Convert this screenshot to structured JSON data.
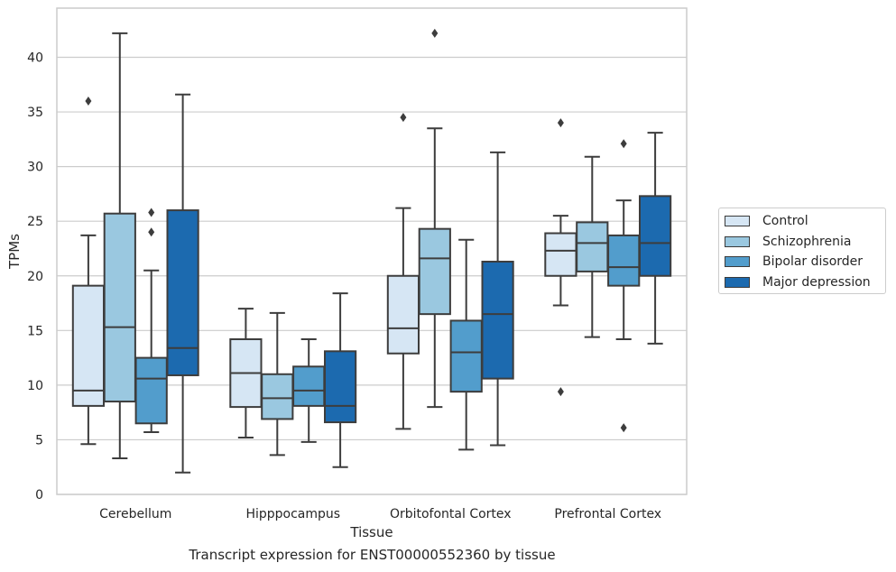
{
  "chart_data": {
    "type": "box",
    "xlabel": "Tissue",
    "ylabel": "TPMs",
    "ylim": [
      0,
      44.5
    ],
    "yticks": [
      0,
      5,
      10,
      15,
      20,
      25,
      30,
      35,
      40
    ],
    "grid": "horizontal",
    "legend_position": "right",
    "categories": [
      "Cerebellum",
      "Hipppocampus",
      "Orbitofontal Cortex",
      "Prefrontal Cortex"
    ],
    "series": [
      {
        "name": "Control",
        "color": "#d6e6f4",
        "boxes": [
          {
            "whislo": 4.6,
            "q1": 8.1,
            "med": 9.5,
            "q3": 19.1,
            "whishi": 23.7,
            "fliers": [
              36.0
            ]
          },
          {
            "whislo": 5.2,
            "q1": 8.0,
            "med": 11.1,
            "q3": 14.2,
            "whishi": 17.0,
            "fliers": []
          },
          {
            "whislo": 6.0,
            "q1": 12.9,
            "med": 15.2,
            "q3": 20.0,
            "whishi": 26.2,
            "fliers": [
              34.5
            ]
          },
          {
            "whislo": 17.3,
            "q1": 20.0,
            "med": 22.3,
            "q3": 23.9,
            "whishi": 25.5,
            "fliers": [
              34.0,
              9.4
            ]
          }
        ]
      },
      {
        "name": "Schizophrenia",
        "color": "#9ac8e0",
        "boxes": [
          {
            "whislo": 3.3,
            "q1": 8.5,
            "med": 15.3,
            "q3": 25.7,
            "whishi": 42.2,
            "fliers": []
          },
          {
            "whislo": 3.6,
            "q1": 6.9,
            "med": 8.8,
            "q3": 11.0,
            "whishi": 16.6,
            "fliers": []
          },
          {
            "whislo": 8.0,
            "q1": 16.5,
            "med": 21.6,
            "q3": 24.3,
            "whishi": 33.5,
            "fliers": [
              42.2
            ]
          },
          {
            "whislo": 14.4,
            "q1": 20.4,
            "med": 23.0,
            "q3": 24.9,
            "whishi": 30.9,
            "fliers": []
          }
        ]
      },
      {
        "name": "Bipolar disorder",
        "color": "#529dcc",
        "boxes": [
          {
            "whislo": 5.7,
            "q1": 6.5,
            "med": 10.6,
            "q3": 12.5,
            "whishi": 20.5,
            "fliers": [
              25.8,
              24.0
            ]
          },
          {
            "whislo": 4.8,
            "q1": 8.1,
            "med": 9.5,
            "q3": 11.7,
            "whishi": 14.2,
            "fliers": []
          },
          {
            "whislo": 4.1,
            "q1": 9.4,
            "med": 13.0,
            "q3": 15.9,
            "whishi": 23.3,
            "fliers": []
          },
          {
            "whislo": 14.2,
            "q1": 19.1,
            "med": 20.8,
            "q3": 23.7,
            "whishi": 26.9,
            "fliers": [
              32.1,
              6.1
            ]
          }
        ]
      },
      {
        "name": "Major depression",
        "color": "#1c6aaf",
        "boxes": [
          {
            "whislo": 2.0,
            "q1": 10.9,
            "med": 13.4,
            "q3": 26.0,
            "whishi": 36.6,
            "fliers": []
          },
          {
            "whislo": 2.5,
            "q1": 6.6,
            "med": 8.1,
            "q3": 13.1,
            "whishi": 18.4,
            "fliers": []
          },
          {
            "whislo": 4.5,
            "q1": 10.6,
            "med": 16.5,
            "q3": 21.3,
            "whishi": 31.3,
            "fliers": []
          },
          {
            "whislo": 13.8,
            "q1": 20.0,
            "med": 23.0,
            "q3": 27.3,
            "whishi": 33.1,
            "fliers": []
          }
        ]
      }
    ],
    "caption": "Transcript expression for ENST00000552360 by tissue"
  }
}
